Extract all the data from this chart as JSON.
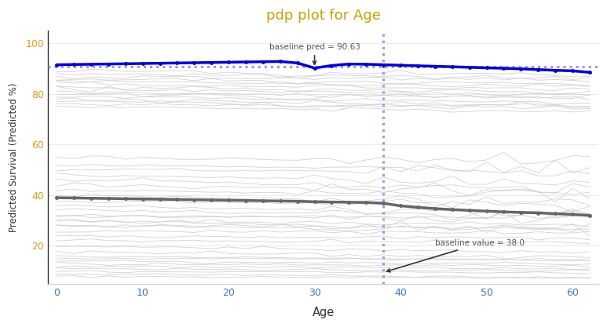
{
  "title": "pdp plot for Age",
  "title_color": "#c8a000",
  "xlabel": "Age",
  "ylabel": "Predicted Survival (Predicted %)",
  "xlim": [
    -1,
    63
  ],
  "ylim": [
    5,
    105
  ],
  "yticks": [
    20,
    40,
    60,
    80,
    100
  ],
  "xticks": [
    0,
    10,
    20,
    30,
    40,
    50,
    60
  ],
  "baseline_value": 38.0,
  "baseline_pred": 90.63,
  "baseline_vline_color": "#9B7FD4",
  "baseline_hline_color": "#9B7FD4",
  "pdp_line_color": "#0000DD",
  "avg_line_color": "#666666",
  "ice_line_color": "#cccccc",
  "background_color": "#ffffff",
  "annotation_color": "#555555",
  "xtick_color": "#4472c4",
  "ytick_color": "#d4a017",
  "age_points": [
    0,
    2,
    4,
    6,
    8,
    10,
    12,
    14,
    16,
    18,
    20,
    22,
    24,
    26,
    28,
    30,
    32,
    34,
    36,
    38,
    40,
    42,
    44,
    46,
    48,
    50,
    52,
    54,
    56,
    58,
    60,
    62
  ],
  "pdp_values": [
    91.5,
    91.6,
    91.7,
    91.8,
    91.9,
    92.0,
    92.1,
    92.2,
    92.3,
    92.4,
    92.5,
    92.6,
    92.7,
    92.8,
    92.2,
    90.2,
    91.2,
    91.8,
    91.7,
    91.5,
    91.3,
    91.1,
    90.9,
    90.7,
    90.5,
    90.3,
    90.1,
    89.9,
    89.6,
    89.3,
    89.1,
    88.5
  ],
  "avg_values": [
    39.0,
    38.9,
    38.8,
    38.7,
    38.6,
    38.5,
    38.4,
    38.3,
    38.2,
    38.1,
    38.0,
    37.9,
    37.8,
    37.7,
    37.6,
    37.4,
    37.3,
    37.2,
    37.1,
    36.8,
    35.8,
    35.2,
    34.7,
    34.3,
    34.0,
    33.7,
    33.4,
    33.2,
    33.0,
    32.7,
    32.4,
    32.0
  ]
}
